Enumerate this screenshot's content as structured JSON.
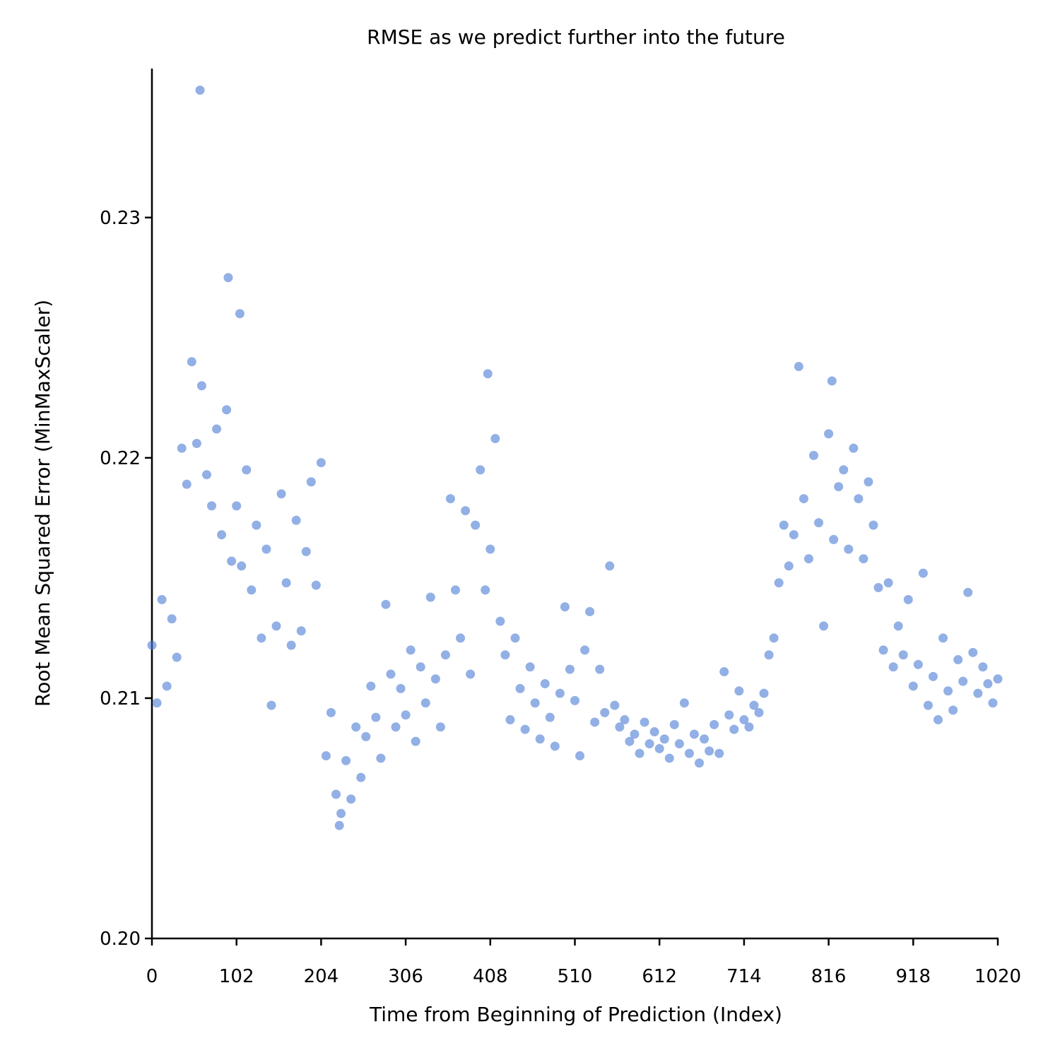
{
  "chart_data": {
    "type": "scatter",
    "title": "RMSE as we predict further into the future",
    "x_label": "Time from Beginning of Prediction (Index)",
    "y_label": "Root Mean Squared Error (MinMaxScaler)",
    "color": "#4a7bd4",
    "xlim": [
      0,
      1020
    ],
    "ylim": [
      0.2,
      0.2362
    ],
    "xticks": [
      0,
      102,
      204,
      306,
      408,
      510,
      612,
      714,
      816,
      918,
      1020
    ],
    "yticks": [
      {
        "value": 0.2,
        "label": "0.20"
      },
      0.21,
      0.22,
      0.23
    ],
    "grid": false,
    "x": [
      0,
      6,
      12,
      18,
      24,
      30,
      36,
      42,
      48,
      54,
      58,
      60,
      66,
      72,
      78,
      84,
      90,
      92,
      96,
      102,
      106,
      108,
      114,
      120,
      126,
      132,
      138,
      144,
      150,
      156,
      162,
      168,
      174,
      180,
      186,
      192,
      198,
      204,
      210,
      216,
      222,
      226,
      228,
      234,
      240,
      246,
      252,
      258,
      264,
      270,
      276,
      282,
      288,
      294,
      300,
      306,
      312,
      318,
      324,
      330,
      336,
      342,
      348,
      354,
      360,
      366,
      372,
      378,
      384,
      390,
      396,
      402,
      405,
      408,
      414,
      420,
      426,
      432,
      438,
      444,
      450,
      456,
      462,
      468,
      474,
      480,
      486,
      492,
      498,
      504,
      510,
      516,
      522,
      528,
      534,
      540,
      546,
      552,
      558,
      564,
      570,
      576,
      582,
      588,
      594,
      600,
      606,
      612,
      618,
      624,
      630,
      636,
      642,
      648,
      654,
      660,
      666,
      672,
      678,
      684,
      690,
      696,
      702,
      708,
      714,
      720,
      726,
      732,
      738,
      744,
      750,
      756,
      762,
      768,
      774,
      780,
      786,
      792,
      798,
      804,
      810,
      816,
      820,
      822,
      828,
      834,
      840,
      846,
      852,
      858,
      864,
      870,
      876,
      882,
      888,
      894,
      900,
      906,
      912,
      918,
      924,
      930,
      936,
      942,
      948,
      954,
      960,
      966,
      972,
      978,
      984,
      990,
      996,
      1002,
      1008,
      1014,
      1020
    ],
    "y": [
      0.2122,
      0.2098,
      0.2141,
      0.2105,
      0.2133,
      0.2117,
      0.2204,
      0.2189,
      0.224,
      0.2206,
      0.2353,
      0.223,
      0.2193,
      0.218,
      0.2212,
      0.2168,
      0.222,
      0.2275,
      0.2157,
      0.218,
      0.226,
      0.2155,
      0.2195,
      0.2145,
      0.2172,
      0.2125,
      0.2162,
      0.2097,
      0.213,
      0.2185,
      0.2148,
      0.2122,
      0.2174,
      0.2128,
      0.2161,
      0.219,
      0.2147,
      0.2198,
      0.2076,
      0.2094,
      0.206,
      0.2047,
      0.2052,
      0.2074,
      0.2058,
      0.2088,
      0.2067,
      0.2084,
      0.2105,
      0.2092,
      0.2075,
      0.2139,
      0.211,
      0.2088,
      0.2104,
      0.2093,
      0.212,
      0.2082,
      0.2113,
      0.2098,
      0.2142,
      0.2108,
      0.2088,
      0.2118,
      0.2183,
      0.2145,
      0.2125,
      0.2178,
      0.211,
      0.2172,
      0.2195,
      0.2145,
      0.2235,
      0.2162,
      0.2208,
      0.2132,
      0.2118,
      0.2091,
      0.2125,
      0.2104,
      0.2087,
      0.2113,
      0.2098,
      0.2083,
      0.2106,
      0.2092,
      0.208,
      0.2102,
      0.2138,
      0.2112,
      0.2099,
      0.2076,
      0.212,
      0.2136,
      0.209,
      0.2112,
      0.2094,
      0.2155,
      0.2097,
      0.2088,
      0.2091,
      0.2082,
      0.2085,
      0.2077,
      0.209,
      0.2081,
      0.2086,
      0.2079,
      0.2083,
      0.2075,
      0.2089,
      0.2081,
      0.2098,
      0.2077,
      0.2085,
      0.2073,
      0.2083,
      0.2078,
      0.2089,
      0.2077,
      0.2111,
      0.2093,
      0.2087,
      0.2103,
      0.2091,
      0.2088,
      0.2097,
      0.2094,
      0.2102,
      0.2118,
      0.2125,
      0.2148,
      0.2172,
      0.2155,
      0.2168,
      0.2238,
      0.2183,
      0.2158,
      0.2201,
      0.2173,
      0.213,
      0.221,
      0.2232,
      0.2166,
      0.2188,
      0.2195,
      0.2162,
      0.2204,
      0.2183,
      0.2158,
      0.219,
      0.2172,
      0.2146,
      0.212,
      0.2148,
      0.2113,
      0.213,
      0.2118,
      0.2141,
      0.2105,
      0.2114,
      0.2152,
      0.2097,
      0.2109,
      0.2091,
      0.2125,
      0.2103,
      0.2095,
      0.2116,
      0.2107,
      0.2144,
      0.2119,
      0.2102,
      0.2113,
      0.2106,
      0.2098,
      0.2108
    ]
  }
}
